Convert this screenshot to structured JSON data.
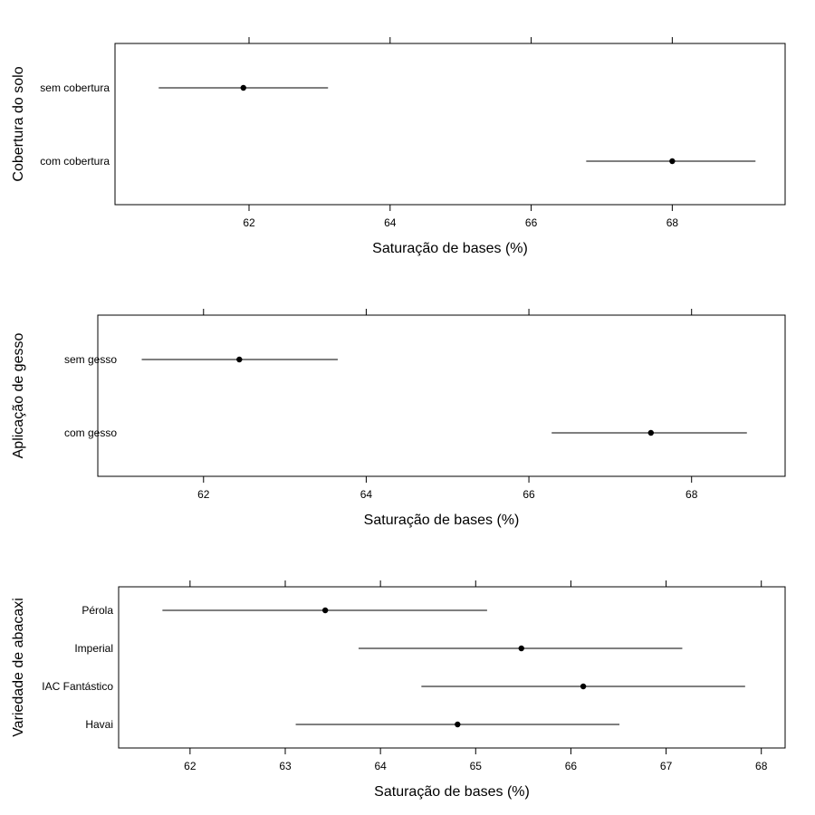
{
  "chart_data": [
    {
      "type": "dotplot-interval",
      "xlabel": "Saturação de bases (%)",
      "ylabel": "Cobertura do solo",
      "xlim": [
        60.1,
        69.6
      ],
      "xticks": [
        62,
        64,
        66,
        68
      ],
      "tick_labels": [
        "62",
        "64",
        "66",
        "68"
      ],
      "grid": false,
      "categories": [
        "sem cobertura",
        "com cobertura"
      ],
      "estimate": [
        61.92,
        68.0
      ],
      "lower": [
        60.72,
        66.78
      ],
      "upper": [
        63.12,
        69.18
      ]
    },
    {
      "type": "dotplot-interval",
      "xlabel": "Saturação de bases (%)",
      "ylabel": "Aplicação de gesso",
      "xlim": [
        60.7,
        69.15
      ],
      "xticks": [
        62,
        64,
        66,
        68
      ],
      "tick_labels": [
        "62",
        "64",
        "66",
        "68"
      ],
      "grid": false,
      "categories": [
        "sem gesso",
        "com gesso"
      ],
      "estimate": [
        62.44,
        67.5
      ],
      "lower": [
        61.24,
        66.28
      ],
      "upper": [
        63.65,
        68.68
      ]
    },
    {
      "type": "dotplot-interval",
      "xlabel": "Saturação de bases (%)",
      "ylabel": "Variedade de abacaxi",
      "xlim": [
        61.25,
        68.25
      ],
      "xticks": [
        62,
        63,
        64,
        65,
        66,
        67,
        68
      ],
      "tick_labels": [
        "62",
        "63",
        "64",
        "65",
        "66",
        "67",
        "68"
      ],
      "grid": false,
      "categories": [
        "Pérola",
        "Imperial",
        "IAC Fantástico",
        "Havai"
      ],
      "estimate": [
        63.42,
        65.48,
        66.13,
        64.81
      ],
      "lower": [
        61.71,
        63.77,
        64.43,
        63.11
      ],
      "upper": [
        65.12,
        67.17,
        67.83,
        66.51
      ]
    }
  ]
}
